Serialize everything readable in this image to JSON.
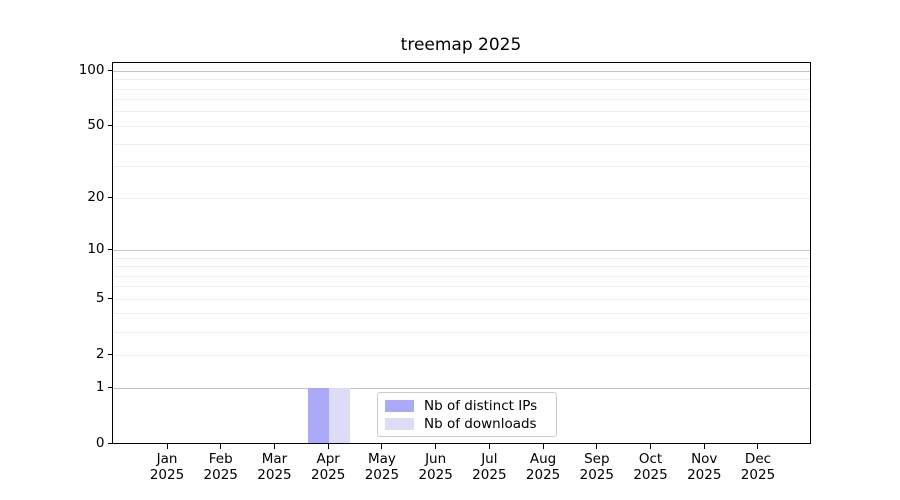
{
  "chart_data": {
    "type": "bar",
    "title": "treemap 2025",
    "categories": [
      "Jan 2025",
      "Feb 2025",
      "Mar 2025",
      "Apr 2025",
      "May 2025",
      "Jun 2025",
      "Jul 2025",
      "Aug 2025",
      "Sep 2025",
      "Oct 2025",
      "Nov 2025",
      "Dec 2025"
    ],
    "x_tick_labels": [
      [
        "Jan",
        "2025"
      ],
      [
        "Feb",
        "2025"
      ],
      [
        "Mar",
        "2025"
      ],
      [
        "Apr",
        "2025"
      ],
      [
        "May",
        "2025"
      ],
      [
        "Jun",
        "2025"
      ],
      [
        "Jul",
        "2025"
      ],
      [
        "Aug",
        "2025"
      ],
      [
        "Sep",
        "2025"
      ],
      [
        "Oct",
        "2025"
      ],
      [
        "Nov",
        "2025"
      ],
      [
        "Dec",
        "2025"
      ]
    ],
    "series": [
      {
        "name": "Nb of distinct IPs",
        "color": "#aaaaf6",
        "values": [
          0,
          0,
          0,
          1,
          0,
          0,
          0,
          0,
          0,
          0,
          0,
          0
        ]
      },
      {
        "name": "Nb of downloads",
        "color": "#dcdcf8",
        "values": [
          0,
          0,
          0,
          1,
          0,
          0,
          0,
          0,
          0,
          0,
          0,
          0
        ]
      }
    ],
    "y_ticks": [
      0,
      1,
      2,
      5,
      10,
      20,
      50,
      100
    ],
    "y_scale": "log1p",
    "ylim": [
      0,
      100
    ],
    "grid": true,
    "legend_position": "lower center"
  }
}
